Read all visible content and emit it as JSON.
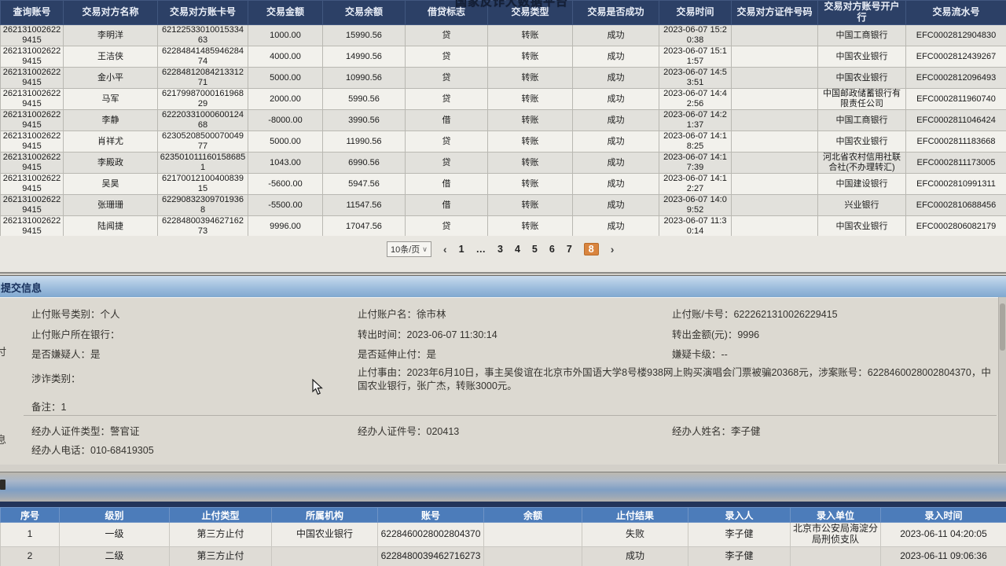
{
  "platform_title": "国家反诈大数据平台",
  "transaction_table": {
    "columns": [
      "查询账号",
      "交易对方名称",
      "交易对方账卡号",
      "交易金额",
      "交易余额",
      "借贷标志",
      "交易类型",
      "交易是否成功",
      "交易时间",
      "交易对方证件号码",
      "交易对方账号开户行",
      "交易流水号"
    ],
    "rows": [
      [
        "2621310026229415",
        "李明洋",
        "6212253301001533463",
        "1000.00",
        "15990.56",
        "贷",
        "转账",
        "成功",
        "2023-06-07 15:20:38",
        "",
        "中国工商银行",
        "EFC0002812904830"
      ],
      [
        "2621310026229415",
        "王洁侠",
        "6228484148594628474",
        "4000.00",
        "14990.56",
        "贷",
        "转账",
        "成功",
        "2023-06-07 15:11:57",
        "",
        "中国农业银行",
        "EFC0002812439267"
      ],
      [
        "2621310026229415",
        "金小平",
        "6228481208421331271",
        "5000.00",
        "10990.56",
        "贷",
        "转账",
        "成功",
        "2023-06-07 14:53:51",
        "",
        "中国农业银行",
        "EFC0002812096493"
      ],
      [
        "2621310026229415",
        "马军",
        "6217998700016196829",
        "2000.00",
        "5990.56",
        "贷",
        "转账",
        "成功",
        "2023-06-07 14:42:56",
        "",
        "中国邮政储蓄银行有限责任公司",
        "EFC0002811960740"
      ],
      [
        "2621310026229415",
        "李静",
        "6222033100060012468",
        "-8000.00",
        "3990.56",
        "借",
        "转账",
        "成功",
        "2023-06-07 14:21:37",
        "",
        "中国工商银行",
        "EFC0002811046424"
      ],
      [
        "2621310026229415",
        "肖祥尤",
        "6230520850007004977",
        "5000.00",
        "11990.56",
        "贷",
        "转账",
        "成功",
        "2023-06-07 14:18:25",
        "",
        "中国农业银行",
        "EFC0002811183668"
      ],
      [
        "2621310026229415",
        "李殿政",
        "6235010111601586851",
        "1043.00",
        "6990.56",
        "贷",
        "转账",
        "成功",
        "2023-06-07 14:17:39",
        "",
        "河北省农村信用社联合社(不办理转汇)",
        "EFC0002811173005"
      ],
      [
        "2621310026229415",
        "吴昊",
        "6217001210040083915",
        "-5600.00",
        "5947.56",
        "借",
        "转账",
        "成功",
        "2023-06-07 14:12:27",
        "",
        "中国建设银行",
        "EFC0002810991311"
      ],
      [
        "2621310026229415",
        "张珊珊",
        "622908323097019368",
        "-5500.00",
        "11547.56",
        "借",
        "转账",
        "成功",
        "2023-06-07 14:09:52",
        "",
        "兴业银行",
        "EFC0002810688456"
      ],
      [
        "2621310026229415",
        "陆闻捷",
        "6228480039462716273",
        "9996.00",
        "17047.56",
        "贷",
        "转账",
        "成功",
        "2023-06-07 11:30:14",
        "",
        "中国农业银行",
        "EFC0002806082179"
      ]
    ],
    "pagination": {
      "page_size": "10条/页",
      "prev": "‹",
      "pages": [
        "1",
        "…",
        "3",
        "4",
        "5",
        "6",
        "7",
        "8"
      ],
      "active_page": "8",
      "next": "›"
    }
  },
  "submit_info": {
    "header": "提交信息",
    "fields": {
      "account_type": {
        "label": "止付账号类别：",
        "value": "个人"
      },
      "account_name": {
        "label": "止付账户名：",
        "value": "徐市林"
      },
      "account_card": {
        "label": "止付账/卡号：",
        "value": "6222621310026229415"
      },
      "account_bank": {
        "label": "止付账户所在银行：",
        "value": ""
      },
      "transfer_time": {
        "label": "转出时间：",
        "value": "2023-06-07 11:30:14"
      },
      "transfer_amount": {
        "label": "转出金额(元)：",
        "value": "9996"
      },
      "is_suspect": {
        "label": "是否嫌疑人：",
        "value": "是"
      },
      "is_extended": {
        "label": "是否延伸止付：",
        "value": "是"
      },
      "suspect_level": {
        "label": "嫌疑卡级：",
        "value": "--"
      },
      "fraud_category": {
        "label": "涉诈类别：",
        "value": ""
      },
      "stop_reason": {
        "label": "止付事由：",
        "value": "2023年6月10日，事主吴俊谊在北京市外国语大学8号楼938网上购买演唱会门票被骗20368元，涉案账号：6228460028002804370，中国农业银行，张广杰，转账3000元。"
      },
      "note": {
        "label": "备注：",
        "value": "1"
      },
      "handler_id_type": {
        "label": "经办人证件类型：",
        "value": "警官证"
      },
      "handler_id_no": {
        "label": "经办人证件号：",
        "value": "020413"
      },
      "handler_name": {
        "label": "经办人姓名：",
        "value": "李子健"
      },
      "handler_phone": {
        "label": "经办人电话：",
        "value": "010-68419305"
      }
    },
    "edge_fragments": [
      "付",
      "息"
    ]
  },
  "stop_payment_table": {
    "columns": [
      "序号",
      "级别",
      "止付类型",
      "所属机构",
      "账号",
      "余额",
      "止付结果",
      "录入人",
      "录入单位",
      "录入时间"
    ],
    "rows": [
      [
        "1",
        "一级",
        "第三方止付",
        "中国农业银行",
        "6228460028002804370",
        "",
        "失败",
        "李子健",
        "北京市公安局海淀分局刑侦支队",
        "2023-06-11 04:20:05"
      ],
      [
        "2",
        "二级",
        "第三方止付",
        "",
        "6228480039462716273",
        "",
        "成功",
        "李子健",
        "",
        "2023-06-11 09:06:36"
      ]
    ]
  },
  "colors": {
    "top_header_navy": "#2c4066",
    "active_page_orange": "#d9853f",
    "submit_bar_blue": "#9cbcdc",
    "bottom_header_blue": "#4c7cba"
  }
}
